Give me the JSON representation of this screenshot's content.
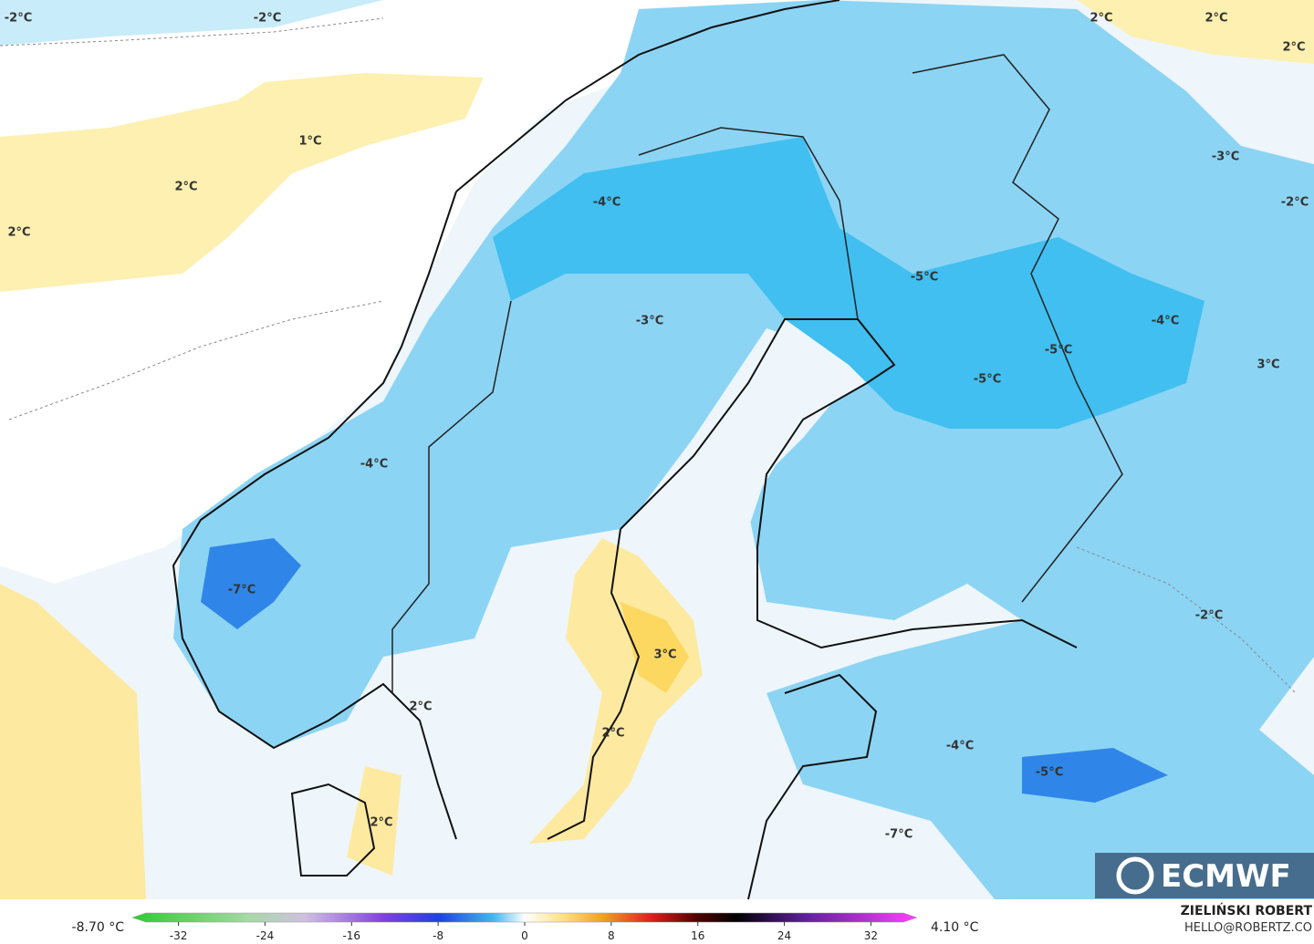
{
  "map": {
    "labels": [
      "-2°C",
      "-2°C",
      "2°C",
      "2°C",
      "2°C",
      "1°C",
      "2°C",
      "2°C",
      "-4°C",
      "-3°C",
      "-2°C",
      "-5°C",
      "-3°C",
      "-4°C",
      "-5°C",
      "3°C",
      "-5°C",
      "-4°C",
      "-7°C",
      "-2°C",
      "3°C",
      "2°C",
      "2°C",
      "-4°C",
      "-5°C",
      "2°C",
      "-7°C"
    ],
    "logo": "ECMWF"
  },
  "colorbar": {
    "min_label": "-8.70 °C",
    "max_label": "4.10 °C",
    "lim": [
      -35,
      35
    ],
    "ticks": [
      -32,
      -24,
      -16,
      -8,
      0,
      8,
      16,
      24,
      32
    ]
  },
  "credit": {
    "author": "ZIELIŃSKI ROBERT",
    "contact": "HELLO@ROBERTZ.CO"
  }
}
